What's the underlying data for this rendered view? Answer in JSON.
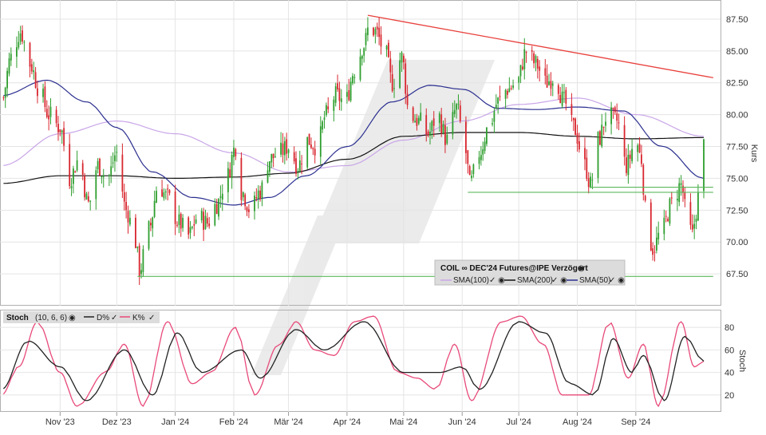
{
  "chart_data": {
    "type": "candlestick",
    "instrument": "COIL",
    "legend": {
      "title": "COIL ∞ DEC'24 Futures@IPE Verzögert",
      "entries": [
        {
          "name": "SMA(100)",
          "color": "#c9a6e8"
        },
        {
          "name": "SMA(200)",
          "color": "#111111"
        },
        {
          "name": "SMA(50)",
          "color": "#2b2f8f"
        }
      ]
    },
    "y_axis_label": "Kurs",
    "ylim": [
      65,
      89
    ],
    "y_ticks": [
      "87.50",
      "85.00",
      "82.50",
      "80.00",
      "77.50",
      "75.00",
      "72.50",
      "70.00",
      "67.50"
    ],
    "x_ticks": [
      "Nov '23",
      "Dez '23",
      "Jan '24",
      "Feb '24",
      "Mär '24",
      "Apr '24",
      "Mai '24",
      "Jun '24",
      "Jul '24",
      "Aug '24",
      "Sep '24"
    ],
    "price_anchors": [
      [
        "2023-10-01",
        81.0
      ],
      [
        "2023-10-06",
        84.5
      ],
      [
        "2023-10-11",
        86.5
      ],
      [
        "2023-10-16",
        84.0
      ],
      [
        "2023-10-21",
        82.0
      ],
      [
        "2023-10-26",
        80.0
      ],
      [
        "2023-11-01",
        79.0
      ],
      [
        "2023-11-06",
        75.0
      ],
      [
        "2023-11-11",
        76.5
      ],
      [
        "2023-11-16",
        73.0
      ],
      [
        "2023-11-21",
        76.0
      ],
      [
        "2023-11-26",
        75.0
      ],
      [
        "2023-12-01",
        77.0
      ],
      [
        "2023-12-06",
        72.5
      ],
      [
        "2023-12-11",
        70.0
      ],
      [
        "2023-12-13",
        67.8
      ],
      [
        "2023-12-18",
        71.0
      ],
      [
        "2023-12-23",
        74.5
      ],
      [
        "2023-12-28",
        73.5
      ],
      [
        "2024-01-03",
        71.5
      ],
      [
        "2024-01-08",
        70.5
      ],
      [
        "2024-01-13",
        72.0
      ],
      [
        "2024-01-18",
        71.5
      ],
      [
        "2024-01-23",
        73.0
      ],
      [
        "2024-01-28",
        75.0
      ],
      [
        "2024-02-02",
        77.5
      ],
      [
        "2024-02-05",
        74.0
      ],
      [
        "2024-02-10",
        72.5
      ],
      [
        "2024-02-15",
        74.0
      ],
      [
        "2024-02-20",
        76.5
      ],
      [
        "2024-02-25",
        77.0
      ],
      [
        "2024-03-01",
        77.5
      ],
      [
        "2024-03-06",
        76.0
      ],
      [
        "2024-03-11",
        78.0
      ],
      [
        "2024-03-16",
        77.5
      ],
      [
        "2024-03-21",
        80.0
      ],
      [
        "2024-03-26",
        81.5
      ],
      [
        "2024-03-31",
        81.0
      ],
      [
        "2024-04-05",
        83.5
      ],
      [
        "2024-04-10",
        85.5
      ],
      [
        "2024-04-13",
        87.0
      ],
      [
        "2024-04-16",
        86.5
      ],
      [
        "2024-04-21",
        85.0
      ],
      [
        "2024-04-25",
        82.5
      ],
      [
        "2024-04-30",
        84.5
      ],
      [
        "2024-05-04",
        80.0
      ],
      [
        "2024-05-09",
        79.5
      ],
      [
        "2024-05-14",
        78.5
      ],
      [
        "2024-05-19",
        80.0
      ],
      [
        "2024-05-24",
        78.0
      ],
      [
        "2024-05-29",
        80.5
      ],
      [
        "2024-06-03",
        77.0
      ],
      [
        "2024-06-05",
        74.5
      ],
      [
        "2024-06-10",
        77.0
      ],
      [
        "2024-06-15",
        79.0
      ],
      [
        "2024-06-20",
        81.0
      ],
      [
        "2024-06-25",
        82.0
      ],
      [
        "2024-06-30",
        82.5
      ],
      [
        "2024-07-05",
        85.0
      ],
      [
        "2024-07-10",
        84.0
      ],
      [
        "2024-07-15",
        82.5
      ],
      [
        "2024-07-20",
        83.0
      ],
      [
        "2024-07-25",
        81.0
      ],
      [
        "2024-07-30",
        79.0
      ],
      [
        "2024-08-05",
        76.0
      ],
      [
        "2024-08-08",
        74.5
      ],
      [
        "2024-08-12",
        78.0
      ],
      [
        "2024-08-17",
        80.0
      ],
      [
        "2024-08-22",
        79.5
      ],
      [
        "2024-08-27",
        76.0
      ],
      [
        "2024-09-01",
        78.0
      ],
      [
        "2024-09-04",
        76.5
      ],
      [
        "2024-09-06",
        72.5
      ],
      [
        "2024-09-10",
        69.5
      ],
      [
        "2024-09-15",
        71.0
      ],
      [
        "2024-09-20",
        73.0
      ],
      [
        "2024-09-25",
        74.5
      ],
      [
        "2024-09-28",
        72.0
      ],
      [
        "2024-10-01",
        70.5
      ],
      [
        "2024-10-03",
        72.5
      ],
      [
        "2024-10-05",
        74.5
      ],
      [
        "2024-10-07",
        77.6
      ]
    ],
    "sma100_anchors": [
      [
        "2023-10-01",
        76.0
      ],
      [
        "2023-11-01",
        78.5
      ],
      [
        "2023-12-01",
        79.5
      ],
      [
        "2024-01-01",
        78.5
      ],
      [
        "2024-02-01",
        77.0
      ],
      [
        "2024-03-01",
        75.5
      ],
      [
        "2024-04-01",
        76.0
      ],
      [
        "2024-05-01",
        78.0
      ],
      [
        "2024-06-01",
        79.5
      ],
      [
        "2024-07-01",
        80.8
      ],
      [
        "2024-08-01",
        81.3
      ],
      [
        "2024-09-01",
        80.0
      ],
      [
        "2024-10-07",
        78.3
      ]
    ],
    "sma200_anchors": [
      [
        "2023-10-01",
        74.6
      ],
      [
        "2023-11-01",
        75.2
      ],
      [
        "2023-12-01",
        75.2
      ],
      [
        "2024-01-01",
        75.0
      ],
      [
        "2024-02-01",
        75.1
      ],
      [
        "2024-03-01",
        75.4
      ],
      [
        "2024-04-01",
        76.5
      ],
      [
        "2024-05-01",
        78.3
      ],
      [
        "2024-06-01",
        78.6
      ],
      [
        "2024-07-01",
        78.6
      ],
      [
        "2024-08-01",
        78.3
      ],
      [
        "2024-09-01",
        78.1
      ],
      [
        "2024-10-07",
        78.2
      ]
    ],
    "sma50_anchors": [
      [
        "2023-10-01",
        81.5
      ],
      [
        "2023-10-25",
        82.7
      ],
      [
        "2023-11-15",
        81.0
      ],
      [
        "2023-12-01",
        79.0
      ],
      [
        "2023-12-20",
        75.5
      ],
      [
        "2024-01-10",
        73.5
      ],
      [
        "2024-02-01",
        72.9
      ],
      [
        "2024-02-20",
        73.5
      ],
      [
        "2024-03-10",
        75.2
      ],
      [
        "2024-04-01",
        77.5
      ],
      [
        "2024-04-25",
        81.0
      ],
      [
        "2024-05-15",
        82.3
      ],
      [
        "2024-06-01",
        82.0
      ],
      [
        "2024-06-20",
        80.5
      ],
      [
        "2024-07-10",
        80.4
      ],
      [
        "2024-08-01",
        80.6
      ],
      [
        "2024-08-25",
        80.3
      ],
      [
        "2024-09-15",
        77.5
      ],
      [
        "2024-10-07",
        75.0
      ]
    ],
    "resistance_line": {
      "start": [
        "2024-04-12",
        87.8
      ],
      "end": [
        "2024-10-12",
        82.9
      ],
      "color": "#e8413c"
    },
    "support_lines": [
      {
        "start": [
          "2023-12-12",
          67.3
        ],
        "end": [
          "2024-10-12",
          67.3
        ]
      },
      {
        "start": [
          "2024-06-04",
          73.9
        ],
        "end": [
          "2024-10-12",
          73.9
        ]
      },
      {
        "start": [
          "2024-08-08",
          74.3
        ],
        "end": [
          "2024-10-12",
          74.3
        ]
      }
    ],
    "stochastic": {
      "title": "Stoch",
      "params": "(10, 6, 6)",
      "ylabel": "Stoch",
      "ylim": [
        5,
        95
      ],
      "y_ticks": [
        "80",
        "60",
        "40",
        "20"
      ],
      "series": [
        {
          "name": "D%",
          "color": "#222222"
        },
        {
          "name": "K%",
          "color": "#e84a7a"
        }
      ],
      "k_anchors": [
        [
          "2023-10-01",
          20
        ],
        [
          "2023-10-10",
          45
        ],
        [
          "2023-10-20",
          85
        ],
        [
          "2023-11-01",
          40
        ],
        [
          "2023-11-10",
          10
        ],
        [
          "2023-11-25",
          40
        ],
        [
          "2023-12-05",
          65
        ],
        [
          "2023-12-15",
          10
        ],
        [
          "2023-12-28",
          85
        ],
        [
          "2024-01-10",
          30
        ],
        [
          "2024-01-20",
          40
        ],
        [
          "2024-02-02",
          80
        ],
        [
          "2024-02-12",
          20
        ],
        [
          "2024-02-25",
          65
        ],
        [
          "2024-03-05",
          85
        ],
        [
          "2024-03-15",
          60
        ],
        [
          "2024-03-25",
          55
        ],
        [
          "2024-04-05",
          85
        ],
        [
          "2024-04-15",
          90
        ],
        [
          "2024-04-28",
          40
        ],
        [
          "2024-05-08",
          35
        ],
        [
          "2024-05-18",
          25
        ],
        [
          "2024-05-28",
          65
        ],
        [
          "2024-06-06",
          15
        ],
        [
          "2024-06-22",
          85
        ],
        [
          "2024-07-02",
          90
        ],
        [
          "2024-07-14",
          65
        ],
        [
          "2024-07-24",
          20
        ],
        [
          "2024-08-07",
          20
        ],
        [
          "2024-08-18",
          85
        ],
        [
          "2024-08-28",
          35
        ],
        [
          "2024-09-05",
          65
        ],
        [
          "2024-09-13",
          10
        ],
        [
          "2024-09-25",
          85
        ],
        [
          "2024-10-02",
          45
        ],
        [
          "2024-10-07",
          50
        ]
      ],
      "d_anchors": [
        [
          "2023-10-01",
          25
        ],
        [
          "2023-10-15",
          68
        ],
        [
          "2023-11-01",
          45
        ],
        [
          "2023-11-15",
          15
        ],
        [
          "2023-12-05",
          60
        ],
        [
          "2023-12-20",
          20
        ],
        [
          "2024-01-02",
          75
        ],
        [
          "2024-01-15",
          40
        ],
        [
          "2024-02-05",
          60
        ],
        [
          "2024-02-15",
          35
        ],
        [
          "2024-03-05",
          78
        ],
        [
          "2024-03-20",
          60
        ],
        [
          "2024-04-10",
          85
        ],
        [
          "2024-05-01",
          40
        ],
        [
          "2024-05-20",
          40
        ],
        [
          "2024-06-01",
          45
        ],
        [
          "2024-06-10",
          25
        ],
        [
          "2024-07-01",
          85
        ],
        [
          "2024-07-15",
          75
        ],
        [
          "2024-07-28",
          30
        ],
        [
          "2024-08-10",
          20
        ],
        [
          "2024-08-20",
          70
        ],
        [
          "2024-08-30",
          40
        ],
        [
          "2024-09-05",
          55
        ],
        [
          "2024-09-16",
          15
        ],
        [
          "2024-09-27",
          72
        ],
        [
          "2024-10-07",
          50
        ]
      ]
    },
    "date_range": [
      "2023-10-01",
      "2024-10-07"
    ]
  }
}
